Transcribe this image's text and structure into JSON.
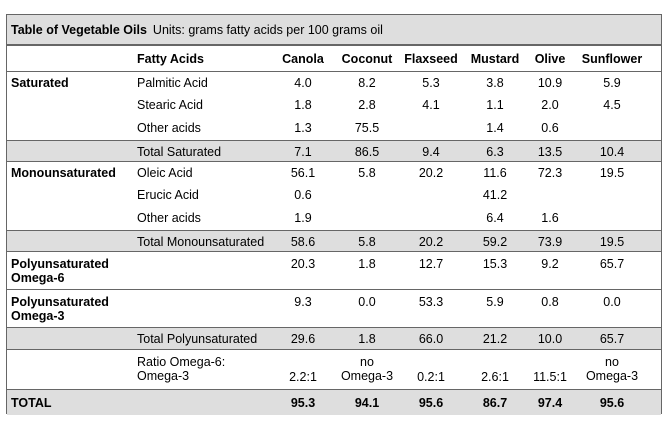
{
  "table": {
    "title": "Table of Vegetable Oils",
    "units": "Units: grams fatty acids per 100 grams oil",
    "header": {
      "fatty_acids": "Fatty Acids",
      "oils": [
        "Canola",
        "Coconut",
        "Flaxseed",
        "Mustard",
        "Olive",
        "Sunflower"
      ]
    },
    "rows": [
      {
        "category": "Saturated",
        "acid": "Palmitic Acid",
        "values": [
          "4.0",
          "8.2",
          "5.3",
          "3.8",
          "10.9",
          "5.9"
        ]
      },
      {
        "category": "",
        "acid": "Stearic Acid",
        "values": [
          "1.8",
          "2.8",
          "4.1",
          "1.1",
          "2.0",
          "4.5"
        ]
      },
      {
        "category": "",
        "acid": "Other acids",
        "values": [
          "1.3",
          "75.5",
          "",
          "1.4",
          "0.6",
          ""
        ]
      },
      {
        "category": "",
        "acid": "Total Saturated",
        "values": [
          "7.1",
          "86.5",
          "9.4",
          "6.3",
          "13.5",
          "10.4"
        ]
      },
      {
        "category": "Monounsaturated",
        "acid": "Oleic Acid",
        "values": [
          "56.1",
          "5.8",
          "20.2",
          "11.6",
          "72.3",
          "19.5"
        ]
      },
      {
        "category": "",
        "acid": "Erucic Acid",
        "values": [
          "0.6",
          "",
          "",
          "41.2",
          "",
          ""
        ]
      },
      {
        "category": "",
        "acid": "Other acids",
        "values": [
          "1.9",
          "",
          "",
          "6.4",
          "1.6",
          ""
        ]
      },
      {
        "category": "",
        "acid": "Total Monounsaturated",
        "values": [
          "58.6",
          "5.8",
          "20.2",
          "59.2",
          "73.9",
          "19.5"
        ]
      },
      {
        "category": "Polyunsaturated Omega-6",
        "acid": "",
        "values": [
          "20.3",
          "1.8",
          "12.7",
          "15.3",
          "9.2",
          "65.7"
        ]
      },
      {
        "category": "Polyunsaturated Omega-3",
        "acid": "",
        "values": [
          "9.3",
          "0.0",
          "53.3",
          "5.9",
          "0.8",
          "0.0"
        ]
      },
      {
        "category": "",
        "acid": "Total Polyunsaturated",
        "values": [
          "29.6",
          "1.8",
          "66.0",
          "21.2",
          "10.0",
          "65.7"
        ]
      },
      {
        "category": "",
        "acid": "Ratio Omega-6: Omega-3",
        "values": [
          "2.2:1",
          "no Omega-3",
          "0.2:1",
          "2.6:1",
          "11.5:1",
          "no Omega-3"
        ]
      }
    ],
    "total": {
      "label": "TOTAL",
      "values": [
        "95.3",
        "94.1",
        "95.6",
        "86.7",
        "97.4",
        "95.6"
      ]
    }
  }
}
